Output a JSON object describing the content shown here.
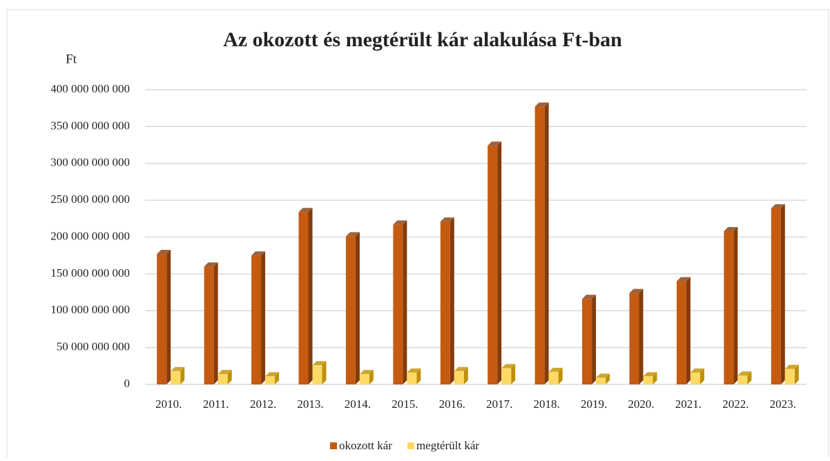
{
  "chart_data": {
    "type": "bar",
    "title": "Az okozott és megtérült kár alakulása Ft-ban",
    "y_axis_label": "Ft",
    "categories": [
      "2010.",
      "2011.",
      "2012.",
      "2013.",
      "2014.",
      "2015.",
      "2016.",
      "2017.",
      "2018.",
      "2019.",
      "2020.",
      "2021.",
      "2022.",
      "2023."
    ],
    "series": [
      {
        "name": "okozott kár",
        "color": "#c55a11",
        "side_color": "#843c0c",
        "values": [
          177000000000,
          160000000000,
          175000000000,
          234000000000,
          201000000000,
          217000000000,
          221000000000,
          324000000000,
          377000000000,
          116000000000,
          124000000000,
          140000000000,
          208000000000,
          239000000000
        ]
      },
      {
        "name": "megtérült kár",
        "color": "#ffd966",
        "side_color": "#bf9000",
        "values": [
          18000000000,
          14000000000,
          11000000000,
          26000000000,
          14000000000,
          16000000000,
          18000000000,
          22000000000,
          17000000000,
          9000000000,
          11000000000,
          16000000000,
          12000000000,
          21000000000
        ]
      }
    ],
    "ylim": [
      0,
      400000000000
    ],
    "yticks": [
      0,
      {
        "value": 50000000000,
        "label": "50 000 000 000"
      },
      {
        "value": 100000000000,
        "label": "100 000 000 000"
      },
      {
        "value": 150000000000,
        "label": "150 000 000 000"
      },
      {
        "value": 200000000000,
        "label": "200 000 000 000"
      },
      {
        "value": 250000000000,
        "label": "250 000 000 000"
      },
      {
        "value": 300000000000,
        "label": "300 000 000 000"
      },
      {
        "value": 350000000000,
        "label": "350 000 000 000"
      },
      {
        "value": 400000000000,
        "label": "400 000 000 000"
      }
    ],
    "grid": true,
    "legend": "bottom"
  }
}
